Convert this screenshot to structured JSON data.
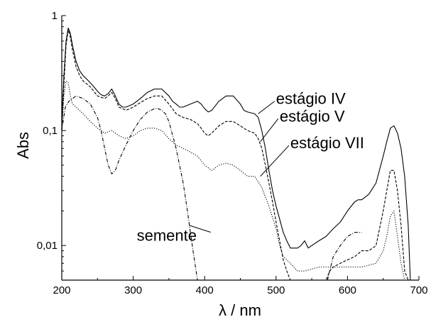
{
  "chart_data": {
    "type": "line",
    "title": "",
    "xlabel": "λ / nm",
    "ylabel": "Abs",
    "xlim": [
      200,
      700
    ],
    "ylim": [
      0.005,
      1
    ],
    "yscale": "log",
    "xticks": [
      200,
      300,
      400,
      500,
      600,
      700
    ],
    "xtick_labels": [
      "200",
      "300",
      "400",
      "500",
      "600",
      "700"
    ],
    "yticks": [
      1,
      0.1,
      0.01
    ],
    "ytick_labels": [
      "1",
      "0,1",
      "0,01"
    ],
    "grid": false,
    "legend": "annotations",
    "series": [
      {
        "name": "estágio IV",
        "style": "solid",
        "points": [
          [
            200,
            0.12
          ],
          [
            203,
            0.3
          ],
          [
            206,
            0.6
          ],
          [
            209,
            0.78
          ],
          [
            212,
            0.7
          ],
          [
            215,
            0.55
          ],
          [
            220,
            0.4
          ],
          [
            225,
            0.33
          ],
          [
            230,
            0.3
          ],
          [
            235,
            0.28
          ],
          [
            240,
            0.26
          ],
          [
            245,
            0.24
          ],
          [
            250,
            0.22
          ],
          [
            255,
            0.205
          ],
          [
            260,
            0.2
          ],
          [
            265,
            0.21
          ],
          [
            270,
            0.23
          ],
          [
            275,
            0.2
          ],
          [
            280,
            0.17
          ],
          [
            285,
            0.16
          ],
          [
            290,
            0.16
          ],
          [
            300,
            0.17
          ],
          [
            310,
            0.19
          ],
          [
            320,
            0.215
          ],
          [
            330,
            0.23
          ],
          [
            340,
            0.23
          ],
          [
            350,
            0.2
          ],
          [
            355,
            0.18
          ],
          [
            360,
            0.17
          ],
          [
            365,
            0.16
          ],
          [
            370,
            0.16
          ],
          [
            380,
            0.17
          ],
          [
            390,
            0.18
          ],
          [
            395,
            0.17
          ],
          [
            400,
            0.155
          ],
          [
            405,
            0.145
          ],
          [
            410,
            0.15
          ],
          [
            420,
            0.18
          ],
          [
            430,
            0.2
          ],
          [
            440,
            0.2
          ],
          [
            450,
            0.17
          ],
          [
            455,
            0.15
          ],
          [
            460,
            0.145
          ],
          [
            470,
            0.14
          ],
          [
            475,
            0.13
          ],
          [
            480,
            0.1
          ],
          [
            485,
            0.07
          ],
          [
            490,
            0.045
          ],
          [
            495,
            0.03
          ],
          [
            500,
            0.022
          ],
          [
            505,
            0.017
          ],
          [
            510,
            0.013
          ],
          [
            515,
            0.011
          ],
          [
            520,
            0.0095
          ],
          [
            530,
            0.0095
          ],
          [
            535,
            0.01
          ],
          [
            540,
            0.011
          ],
          [
            545,
            0.0095
          ],
          [
            550,
            0.01
          ],
          [
            560,
            0.011
          ],
          [
            570,
            0.012
          ],
          [
            580,
            0.014
          ],
          [
            590,
            0.016
          ],
          [
            600,
            0.02
          ],
          [
            610,
            0.024
          ],
          [
            615,
            0.025
          ],
          [
            620,
            0.025
          ],
          [
            630,
            0.028
          ],
          [
            640,
            0.035
          ],
          [
            650,
            0.06
          ],
          [
            655,
            0.08
          ],
          [
            660,
            0.105
          ],
          [
            665,
            0.11
          ],
          [
            670,
            0.095
          ],
          [
            675,
            0.07
          ],
          [
            680,
            0.04
          ],
          [
            685,
            0.015
          ],
          [
            688,
            0.005
          ]
        ]
      },
      {
        "name": "estágio V",
        "style": "dashed",
        "points": [
          [
            200,
            0.1
          ],
          [
            203,
            0.25
          ],
          [
            206,
            0.55
          ],
          [
            209,
            0.75
          ],
          [
            212,
            0.65
          ],
          [
            215,
            0.5
          ],
          [
            220,
            0.36
          ],
          [
            225,
            0.3
          ],
          [
            230,
            0.27
          ],
          [
            240,
            0.24
          ],
          [
            250,
            0.2
          ],
          [
            260,
            0.19
          ],
          [
            265,
            0.2
          ],
          [
            270,
            0.215
          ],
          [
            275,
            0.19
          ],
          [
            280,
            0.16
          ],
          [
            290,
            0.15
          ],
          [
            300,
            0.16
          ],
          [
            310,
            0.175
          ],
          [
            320,
            0.19
          ],
          [
            330,
            0.2
          ],
          [
            340,
            0.2
          ],
          [
            350,
            0.17
          ],
          [
            360,
            0.14
          ],
          [
            370,
            0.13
          ],
          [
            380,
            0.125
          ],
          [
            390,
            0.115
          ],
          [
            395,
            0.105
          ],
          [
            400,
            0.095
          ],
          [
            405,
            0.09
          ],
          [
            410,
            0.095
          ],
          [
            420,
            0.11
          ],
          [
            430,
            0.12
          ],
          [
            440,
            0.12
          ],
          [
            450,
            0.11
          ],
          [
            460,
            0.1
          ],
          [
            470,
            0.095
          ],
          [
            475,
            0.085
          ],
          [
            480,
            0.07
          ],
          [
            485,
            0.05
          ],
          [
            490,
            0.035
          ],
          [
            495,
            0.024
          ],
          [
            500,
            0.016
          ],
          [
            505,
            0.011
          ],
          [
            510,
            0.0075
          ],
          [
            515,
            0.006
          ],
          [
            520,
            0.005
          ],
          [
            570,
            0.005
          ],
          [
            575,
            0.006
          ],
          [
            580,
            0.0065
          ],
          [
            590,
            0.007
          ],
          [
            600,
            0.0075
          ],
          [
            610,
            0.008
          ],
          [
            620,
            0.009
          ],
          [
            630,
            0.009
          ],
          [
            640,
            0.01
          ],
          [
            650,
            0.02
          ],
          [
            655,
            0.03
          ],
          [
            660,
            0.045
          ],
          [
            665,
            0.045
          ],
          [
            670,
            0.03
          ],
          [
            675,
            0.015
          ],
          [
            680,
            0.006
          ],
          [
            685,
            0.005
          ]
        ]
      },
      {
        "name": "estágio VII",
        "style": "dotted",
        "points": [
          [
            200,
            0.1
          ],
          [
            203,
            0.2
          ],
          [
            206,
            0.27
          ],
          [
            209,
            0.26
          ],
          [
            212,
            0.2
          ],
          [
            215,
            0.17
          ],
          [
            220,
            0.16
          ],
          [
            230,
            0.14
          ],
          [
            240,
            0.12
          ],
          [
            250,
            0.105
          ],
          [
            260,
            0.095
          ],
          [
            270,
            0.1
          ],
          [
            280,
            0.09
          ],
          [
            290,
            0.085
          ],
          [
            300,
            0.09
          ],
          [
            310,
            0.1
          ],
          [
            320,
            0.105
          ],
          [
            330,
            0.105
          ],
          [
            340,
            0.1
          ],
          [
            350,
            0.085
          ],
          [
            360,
            0.075
          ],
          [
            370,
            0.07
          ],
          [
            380,
            0.065
          ],
          [
            390,
            0.06
          ],
          [
            400,
            0.05
          ],
          [
            410,
            0.045
          ],
          [
            420,
            0.05
          ],
          [
            430,
            0.052
          ],
          [
            440,
            0.05
          ],
          [
            450,
            0.045
          ],
          [
            460,
            0.04
          ],
          [
            470,
            0.04
          ],
          [
            480,
            0.032
          ],
          [
            490,
            0.022
          ],
          [
            500,
            0.014
          ],
          [
            505,
            0.01
          ],
          [
            510,
            0.008
          ],
          [
            520,
            0.007
          ],
          [
            530,
            0.006
          ],
          [
            540,
            0.006
          ],
          [
            560,
            0.0065
          ],
          [
            580,
            0.0065
          ],
          [
            600,
            0.0065
          ],
          [
            620,
            0.0065
          ],
          [
            640,
            0.007
          ],
          [
            650,
            0.009
          ],
          [
            655,
            0.012
          ],
          [
            660,
            0.018
          ],
          [
            665,
            0.02
          ],
          [
            670,
            0.012
          ],
          [
            675,
            0.007
          ],
          [
            680,
            0.005
          ]
        ]
      },
      {
        "name": "semente",
        "style": "dash-dot",
        "points": [
          [
            200,
            0.1
          ],
          [
            205,
            0.16
          ],
          [
            210,
            0.18
          ],
          [
            220,
            0.2
          ],
          [
            230,
            0.19
          ],
          [
            240,
            0.17
          ],
          [
            250,
            0.13
          ],
          [
            255,
            0.1
          ],
          [
            260,
            0.07
          ],
          [
            265,
            0.05
          ],
          [
            270,
            0.042
          ],
          [
            275,
            0.045
          ],
          [
            280,
            0.055
          ],
          [
            290,
            0.075
          ],
          [
            300,
            0.1
          ],
          [
            310,
            0.125
          ],
          [
            320,
            0.145
          ],
          [
            330,
            0.155
          ],
          [
            335,
            0.155
          ],
          [
            340,
            0.15
          ],
          [
            345,
            0.14
          ],
          [
            350,
            0.12
          ],
          [
            360,
            0.07
          ],
          [
            370,
            0.035
          ],
          [
            375,
            0.022
          ],
          [
            380,
            0.013
          ],
          [
            385,
            0.008
          ],
          [
            390,
            0.005
          ]
        ]
      },
      {
        "name": "semente tail",
        "style": "dash-dot",
        "points": [
          [
            572,
            0.005
          ],
          [
            580,
            0.008
          ],
          [
            590,
            0.01
          ],
          [
            600,
            0.012
          ],
          [
            610,
            0.013
          ],
          [
            620,
            0.013
          ]
        ]
      }
    ],
    "annotations": [
      {
        "text": "estágio IV",
        "x": 500,
        "y": 0.17,
        "anchor_x": 475,
        "anchor_y": 0.14
      },
      {
        "text": "estágio V",
        "x": 505,
        "y": 0.12,
        "anchor_x": 478,
        "anchor_y": 0.08
      },
      {
        "text": "estágio VII",
        "x": 520,
        "y": 0.07,
        "anchor_x": 478,
        "anchor_y": 0.04
      },
      {
        "text": "semente",
        "x": 305,
        "y": 0.011,
        "anchor_x": 378,
        "anchor_y": 0.015
      }
    ]
  }
}
